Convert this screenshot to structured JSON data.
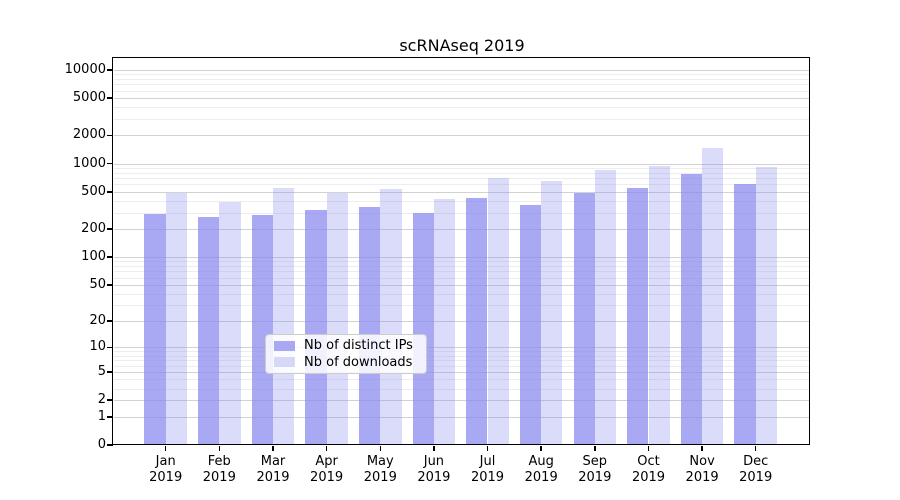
{
  "title": "scRNAseq 2019",
  "colors": {
    "bar_base": "136,136,238",
    "series_alphas": [
      0.72,
      0.3
    ],
    "grid_major": "#d2d2d2",
    "grid_minor": "#ededed"
  },
  "y_axis": {
    "tick_values": [
      10000,
      5000,
      2000,
      1000,
      500,
      200,
      100,
      50,
      20,
      10,
      5,
      2,
      1,
      0
    ],
    "minor_values": [
      3,
      4,
      6,
      7,
      8,
      9,
      30,
      40,
      60,
      70,
      80,
      90,
      300,
      400,
      600,
      700,
      800,
      900,
      3000,
      4000,
      6000,
      7000,
      8000,
      9000
    ],
    "scale": "pseudo-log10(1+v)",
    "max_value": 13000
  },
  "x_axis": {
    "months": [
      "Jan",
      "Feb",
      "Mar",
      "Apr",
      "May",
      "Jun",
      "Jul",
      "Aug",
      "Sep",
      "Oct",
      "Nov",
      "Dec"
    ],
    "year": "2019"
  },
  "legend": {
    "entries": [
      {
        "label": "Nb of distinct IPs"
      },
      {
        "label": "Nb of downloads"
      }
    ]
  },
  "chart_data": {
    "type": "bar",
    "title": "scRNAseq 2019",
    "categories": [
      "Jan 2019",
      "Feb 2019",
      "Mar 2019",
      "Apr 2019",
      "May 2019",
      "Jun 2019",
      "Jul 2019",
      "Aug 2019",
      "Sep 2019",
      "Oct 2019",
      "Nov 2019",
      "Dec 2019"
    ],
    "series": [
      {
        "name": "Nb of distinct IPs",
        "values": [
          290,
          270,
          280,
          320,
          340,
          300,
          425,
          365,
          480,
          550,
          770,
          600
        ]
      },
      {
        "name": "Nb of downloads",
        "values": [
          480,
          390,
          545,
          480,
          530,
          415,
          700,
          655,
          855,
          950,
          1455,
          920
        ]
      }
    ],
    "xlabel": "",
    "ylabel": "",
    "yscale": "pseudo-log (log10(1+v))",
    "ylim": [
      0,
      13000
    ],
    "grid": true,
    "legend_position": "lower center inside plot"
  }
}
